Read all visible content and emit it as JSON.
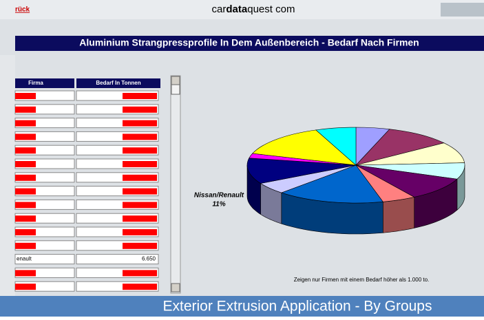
{
  "header": {
    "back_link": "rück",
    "site_pre": "car",
    "site_bold": "data",
    "site_post": "quest com"
  },
  "title": "Aluminium Strangpressprofile In Dem Außenbereich - Bedarf Nach Firmen",
  "table": {
    "headers": [
      "Firma",
      "Bedarf In Tonnen"
    ],
    "rows": [
      [
        "enault",
        "6.650"
      ]
    ]
  },
  "pie": {
    "type": "pie",
    "categories": [
      null,
      null,
      null,
      null,
      null,
      null,
      null,
      null,
      "Nissan/Renault",
      null,
      null,
      null
    ],
    "values": [
      5,
      10,
      9,
      7,
      10,
      5,
      16,
      5,
      11,
      2,
      14,
      6
    ],
    "value_labels": [
      null,
      null,
      null,
      null,
      null,
      null,
      null,
      null,
      "11%",
      null,
      null,
      null
    ],
    "colors": [
      "#9f9fff",
      "#993366",
      "#ffffcc",
      "#ccffff",
      "#660066",
      "#ff8080",
      "#0066cc",
      "#ccccff",
      "#000080",
      "#ff00ff",
      "#ffff00",
      "#00ffff"
    ]
  },
  "note": "Zeigen nur Firmen mit einem Bedarf höher als 1.000 to.",
  "footer": "Exterior Extrusion Application - By Groups"
}
